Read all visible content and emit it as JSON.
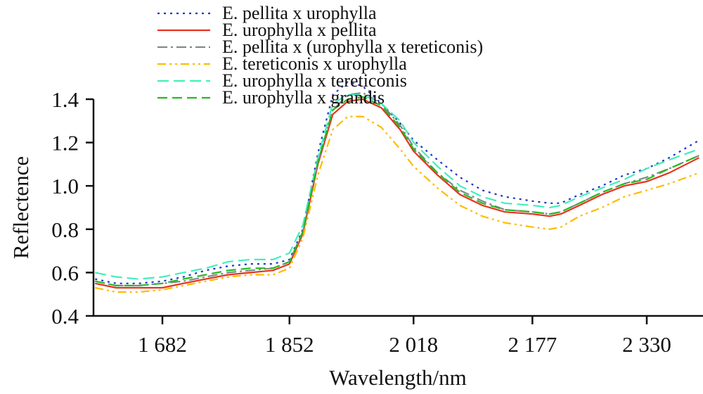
{
  "chart_data": {
    "type": "line",
    "title": "",
    "xlabel": "Wavelength/nm",
    "ylabel": "Reflectence",
    "xlim": [
      1589,
      2405
    ],
    "ylim": [
      0.4,
      1.4
    ],
    "xticks": [
      1682,
      1852,
      2018,
      2177,
      2330
    ],
    "xtick_labels": [
      "1 682",
      "1 852",
      "2 018",
      "2 177",
      "2 330"
    ],
    "yticks": [
      0.4,
      0.6,
      0.8,
      1.0,
      1.2,
      1.4
    ],
    "ytick_labels": [
      "0.4",
      "0.6",
      "0.8",
      "1.0",
      "1.2",
      "1.4"
    ],
    "grid": false,
    "legend_position": "top-center",
    "x": [
      1592,
      1620,
      1650,
      1682,
      1710,
      1740,
      1770,
      1800,
      1830,
      1852,
      1870,
      1890,
      1910,
      1930,
      1950,
      1975,
      2000,
      2018,
      2050,
      2080,
      2110,
      2140,
      2177,
      2200,
      2215,
      2240,
      2270,
      2300,
      2330,
      2360,
      2400
    ],
    "series": [
      {
        "name": "E. pellita x urophylla",
        "color": "#2233cc",
        "dash": "dotted",
        "values": [
          0.57,
          0.55,
          0.55,
          0.56,
          0.58,
          0.61,
          0.63,
          0.64,
          0.64,
          0.66,
          0.8,
          1.15,
          1.42,
          1.48,
          1.46,
          1.38,
          1.29,
          1.21,
          1.12,
          1.04,
          0.98,
          0.95,
          0.93,
          0.92,
          0.92,
          0.96,
          1.0,
          1.05,
          1.08,
          1.13,
          1.21
        ]
      },
      {
        "name": "E. urophylla x pellita",
        "color": "#e8321e",
        "dash": "solid",
        "values": [
          0.55,
          0.53,
          0.53,
          0.53,
          0.55,
          0.57,
          0.59,
          0.6,
          0.61,
          0.64,
          0.78,
          1.1,
          1.33,
          1.39,
          1.4,
          1.36,
          1.26,
          1.16,
          1.05,
          0.96,
          0.91,
          0.88,
          0.87,
          0.86,
          0.87,
          0.91,
          0.96,
          1.0,
          1.02,
          1.06,
          1.13
        ]
      },
      {
        "name": "E. pellita x (urophylla x tereticonis)",
        "color": "#7f8a8a",
        "dash": "dashdot",
        "values": [
          0.56,
          0.54,
          0.54,
          0.55,
          0.56,
          0.58,
          0.6,
          0.61,
          0.62,
          0.65,
          0.79,
          1.11,
          1.35,
          1.42,
          1.43,
          1.38,
          1.28,
          1.18,
          1.06,
          0.98,
          0.93,
          0.89,
          0.88,
          0.87,
          0.88,
          0.92,
          0.97,
          1.01,
          1.04,
          1.08,
          1.14
        ]
      },
      {
        "name": "E. tereticonis x urophylla",
        "color": "#ffbb00",
        "dash": "dashdotdot",
        "values": [
          0.53,
          0.51,
          0.51,
          0.52,
          0.54,
          0.56,
          0.58,
          0.59,
          0.59,
          0.62,
          0.76,
          1.05,
          1.26,
          1.32,
          1.32,
          1.27,
          1.17,
          1.09,
          0.99,
          0.91,
          0.86,
          0.83,
          0.81,
          0.8,
          0.81,
          0.86,
          0.9,
          0.95,
          0.98,
          1.01,
          1.06
        ]
      },
      {
        "name": "E. urophylla x tereticonis",
        "color": "#44eebb",
        "dash": "dashed",
        "values": [
          0.6,
          0.58,
          0.57,
          0.58,
          0.6,
          0.62,
          0.65,
          0.66,
          0.66,
          0.69,
          0.82,
          1.13,
          1.38,
          1.42,
          1.42,
          1.38,
          1.3,
          1.2,
          1.09,
          1.0,
          0.95,
          0.92,
          0.91,
          0.9,
          0.91,
          0.95,
          0.99,
          1.03,
          1.08,
          1.12,
          1.17
        ]
      },
      {
        "name": "E. urophylla x grandis",
        "color": "#22bb22",
        "dash": "longdash",
        "values": [
          0.56,
          0.54,
          0.54,
          0.55,
          0.57,
          0.59,
          0.61,
          0.62,
          0.62,
          0.65,
          0.79,
          1.11,
          1.35,
          1.4,
          1.41,
          1.37,
          1.27,
          1.17,
          1.06,
          0.97,
          0.92,
          0.89,
          0.88,
          0.87,
          0.88,
          0.92,
          0.97,
          1.01,
          1.03,
          1.08,
          1.14
        ]
      }
    ]
  }
}
